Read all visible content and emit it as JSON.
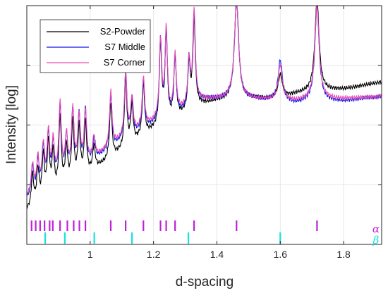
{
  "chart_data": {
    "type": "line",
    "title": "",
    "xlabel": "d-spacing",
    "ylabel": "Intensity [log]",
    "xlim": [
      0.8,
      1.92
    ],
    "ylim": [
      0,
      1
    ],
    "xticks": [
      1,
      1.2,
      1.4,
      1.6,
      1.8
    ],
    "xtick_labels": [
      "1",
      "1.2",
      "1.4",
      "1.6",
      "1.8"
    ],
    "y_scale": "log",
    "grid": true,
    "legend": {
      "placement": "top-left",
      "entries": [
        "S2-Powder",
        "S7 Middle",
        "S7 Corner"
      ]
    },
    "series": [
      {
        "name": "S2-Powder",
        "color": "#000000",
        "baseline": [
          [
            0.8,
            0.14
          ],
          [
            0.9,
            0.22
          ],
          [
            1.0,
            0.3
          ],
          [
            1.1,
            0.39
          ],
          [
            1.2,
            0.48
          ],
          [
            1.3,
            0.55
          ],
          [
            1.33,
            0.58
          ],
          [
            1.4,
            0.6
          ],
          [
            1.5,
            0.61
          ],
          [
            1.6,
            0.61
          ],
          [
            1.65,
            0.63
          ],
          [
            1.7,
            0.64
          ],
          [
            1.8,
            0.65
          ],
          [
            1.92,
            0.68
          ]
        ],
        "peaks": [
          [
            0.818,
            0.13
          ],
          [
            0.835,
            0.14
          ],
          [
            0.852,
            0.18
          ],
          [
            0.868,
            0.22
          ],
          [
            0.883,
            0.17
          ],
          [
            0.905,
            0.3
          ],
          [
            0.925,
            0.16
          ],
          [
            0.945,
            0.25
          ],
          [
            0.965,
            0.21
          ],
          [
            0.985,
            0.22
          ],
          [
            1.012,
            0.1
          ],
          [
            1.065,
            0.23
          ],
          [
            1.112,
            0.29
          ],
          [
            1.132,
            0.16
          ],
          [
            1.168,
            0.22
          ],
          [
            1.222,
            0.34
          ],
          [
            1.24,
            0.37
          ],
          [
            1.268,
            0.25
          ],
          [
            1.312,
            0.19
          ],
          [
            1.328,
            0.36
          ],
          [
            1.462,
            0.42
          ],
          [
            1.6,
            0.1
          ],
          [
            1.716,
            0.38
          ]
        ]
      },
      {
        "name": "S7 Middle",
        "color": "#1414e6",
        "baseline": [
          [
            0.8,
            0.19
          ],
          [
            0.9,
            0.27
          ],
          [
            1.0,
            0.34
          ],
          [
            1.1,
            0.43
          ],
          [
            1.2,
            0.5
          ],
          [
            1.3,
            0.56
          ],
          [
            1.33,
            0.6
          ],
          [
            1.4,
            0.61
          ],
          [
            1.5,
            0.61
          ],
          [
            1.6,
            0.6
          ],
          [
            1.65,
            0.59
          ],
          [
            1.7,
            0.6
          ],
          [
            1.8,
            0.6
          ],
          [
            1.92,
            0.62
          ]
        ],
        "peaks": [
          [
            0.818,
            0.12
          ],
          [
            0.835,
            0.13
          ],
          [
            0.852,
            0.17
          ],
          [
            0.868,
            0.21
          ],
          [
            0.883,
            0.16
          ],
          [
            0.905,
            0.3
          ],
          [
            0.925,
            0.16
          ],
          [
            0.945,
            0.26
          ],
          [
            0.965,
            0.22
          ],
          [
            0.985,
            0.23
          ],
          [
            1.012,
            0.09
          ],
          [
            1.065,
            0.23
          ],
          [
            1.112,
            0.28
          ],
          [
            1.132,
            0.15
          ],
          [
            1.168,
            0.21
          ],
          [
            1.222,
            0.33
          ],
          [
            1.24,
            0.36
          ],
          [
            1.268,
            0.24
          ],
          [
            1.312,
            0.19
          ],
          [
            1.328,
            0.37
          ],
          [
            1.462,
            0.4
          ],
          [
            1.6,
            0.17
          ],
          [
            1.716,
            0.4
          ]
        ]
      },
      {
        "name": "S7 Corner",
        "color": "#e64db4",
        "baseline": [
          [
            0.8,
            0.2
          ],
          [
            0.9,
            0.28
          ],
          [
            1.0,
            0.35
          ],
          [
            1.1,
            0.44
          ],
          [
            1.2,
            0.51
          ],
          [
            1.3,
            0.57
          ],
          [
            1.33,
            0.6
          ],
          [
            1.4,
            0.61
          ],
          [
            1.5,
            0.61
          ],
          [
            1.6,
            0.6
          ],
          [
            1.65,
            0.6
          ],
          [
            1.7,
            0.61
          ],
          [
            1.8,
            0.61
          ],
          [
            1.92,
            0.62
          ]
        ],
        "peaks": [
          [
            0.818,
            0.12
          ],
          [
            0.835,
            0.13
          ],
          [
            0.852,
            0.17
          ],
          [
            0.868,
            0.21
          ],
          [
            0.883,
            0.16
          ],
          [
            0.905,
            0.3
          ],
          [
            0.925,
            0.15
          ],
          [
            0.945,
            0.25
          ],
          [
            0.965,
            0.21
          ],
          [
            0.985,
            0.22
          ],
          [
            1.012,
            0.09
          ],
          [
            1.065,
            0.23
          ],
          [
            1.112,
            0.27
          ],
          [
            1.132,
            0.15
          ],
          [
            1.168,
            0.21
          ],
          [
            1.222,
            0.33
          ],
          [
            1.24,
            0.36
          ],
          [
            1.268,
            0.24
          ],
          [
            1.312,
            0.19
          ],
          [
            1.328,
            0.38
          ],
          [
            1.462,
            0.41
          ],
          [
            1.6,
            0.15
          ],
          [
            1.716,
            0.39
          ]
        ]
      }
    ],
    "phases": [
      {
        "label": "α",
        "color": "#c020d8",
        "positions": [
          0.815,
          0.828,
          0.842,
          0.856,
          0.872,
          0.882,
          0.905,
          0.928,
          0.948,
          0.966,
          0.985,
          1.065,
          1.112,
          1.168,
          1.222,
          1.24,
          1.268,
          1.328,
          1.462,
          1.716
        ]
      },
      {
        "label": "β",
        "color": "#18e0e0",
        "positions": [
          0.858,
          0.92,
          1.013,
          1.132,
          1.31,
          1.6
        ]
      }
    ]
  }
}
